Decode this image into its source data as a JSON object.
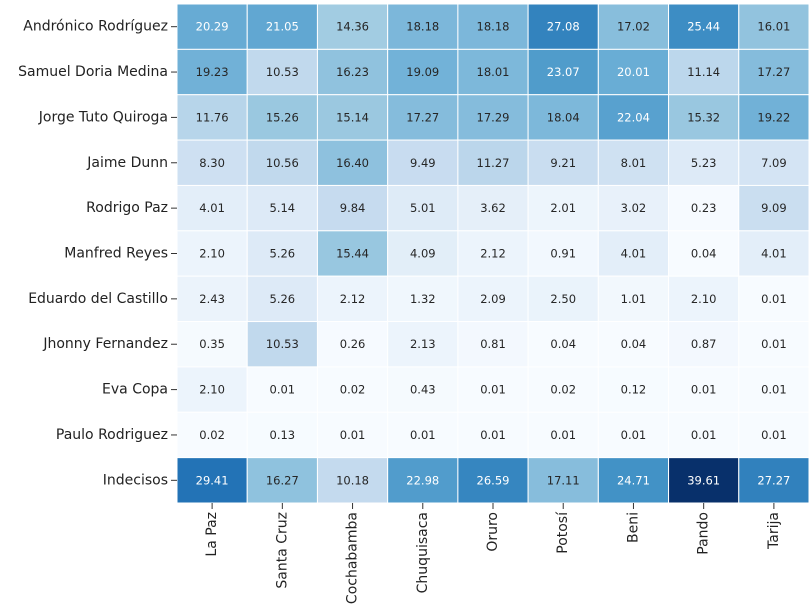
{
  "chart_data": {
    "type": "heatmap",
    "title": "",
    "xlabel": "",
    "ylabel": "",
    "colormap": "Blues",
    "colorscale_range": [
      0,
      39.61
    ],
    "colorbar": false,
    "grid_lines_color": "#ffffff",
    "columns": [
      "La Paz",
      "Santa Cruz",
      "Cochabamba",
      "Chuquisaca",
      "Oruro",
      "Potosí",
      "Beni",
      "Pando",
      "Tarija"
    ],
    "rows": [
      {
        "label": "Andrónico Rodríguez",
        "values": [
          20.29,
          21.05,
          14.36,
          18.18,
          18.18,
          27.08,
          17.02,
          25.44,
          16.01
        ],
        "display": [
          "20.29",
          "21.05",
          "14.36",
          "18.18",
          "18.18",
          "27.08",
          "17.02",
          "25.44",
          "16.01"
        ]
      },
      {
        "label": "Samuel Doria Medina",
        "values": [
          19.23,
          10.53,
          16.23,
          19.09,
          18.01,
          23.07,
          20.01,
          11.14,
          17.27
        ],
        "display": [
          "19.23",
          "10.53",
          "16.23",
          "19.09",
          "18.01",
          "23.07",
          "20.01",
          "11.14",
          "17.27"
        ]
      },
      {
        "label": "Jorge Tuto Quiroga",
        "values": [
          11.76,
          15.26,
          15.14,
          17.27,
          17.29,
          18.04,
          22.04,
          15.32,
          19.22
        ],
        "display": [
          "11.76",
          "15.26",
          "15.14",
          "17.27",
          "17.29",
          "18.04",
          "22.04",
          "15.32",
          "19.22"
        ]
      },
      {
        "label": "Jaime Dunn",
        "values": [
          8.3,
          10.56,
          16.4,
          9.49,
          11.27,
          9.21,
          8.01,
          5.23,
          7.09
        ],
        "display": [
          "8.30",
          "10.56",
          "16.40",
          "9.49",
          "11.27",
          "9.21",
          "8.01",
          "5.23",
          "7.09"
        ]
      },
      {
        "label": "Rodrigo Paz",
        "values": [
          4.01,
          5.14,
          9.84,
          5.01,
          3.62,
          2.01,
          3.02,
          0.23,
          9.09
        ],
        "display": [
          "4.01",
          "5.14",
          "9.84",
          "5.01",
          "3.62",
          "2.01",
          "3.02",
          "0.23",
          "9.09"
        ]
      },
      {
        "label": "Manfred Reyes",
        "values": [
          2.1,
          5.26,
          15.44,
          4.09,
          2.12,
          0.91,
          4.01,
          0.04,
          4.01
        ],
        "display": [
          "2.10",
          "5.26",
          "15.44",
          "4.09",
          "2.12",
          "0.91",
          "4.01",
          "0.04",
          "4.01"
        ]
      },
      {
        "label": "Eduardo del Castillo",
        "values": [
          2.43,
          5.26,
          2.12,
          1.32,
          2.09,
          2.5,
          1.01,
          2.1,
          0.01
        ],
        "display": [
          "2.43",
          "5.26",
          "2.12",
          "1.32",
          "2.09",
          "2.50",
          "1.01",
          "2.10",
          "0.01"
        ]
      },
      {
        "label": "Jhonny Fernandez",
        "values": [
          0.35,
          10.53,
          0.26,
          2.13,
          0.81,
          0.04,
          0.04,
          0.87,
          0.01
        ],
        "display": [
          "0.35",
          "10.53",
          "0.26",
          "2.13",
          "0.81",
          "0.04",
          "0.04",
          "0.87",
          "0.01"
        ]
      },
      {
        "label": "Eva Copa",
        "values": [
          2.1,
          0.01,
          0.02,
          0.43,
          0.01,
          0.02,
          0.12,
          0.01,
          0.01
        ],
        "display": [
          "2.10",
          "0.01",
          "0.02",
          "0.43",
          "0.01",
          "0.02",
          "0.12",
          "0.01",
          "0.01"
        ]
      },
      {
        "label": "Paulo Rodriguez",
        "values": [
          0.02,
          0.13,
          0.01,
          0.01,
          0.01,
          0.01,
          0.01,
          0.01,
          0.01
        ],
        "display": [
          "0.02",
          "0.13",
          "0.01",
          "0.01",
          "0.01",
          "0.01",
          "0.01",
          "0.01",
          "0.01"
        ]
      },
      {
        "label": "Indecisos",
        "values": [
          29.41,
          16.27,
          10.18,
          22.98,
          26.59,
          17.11,
          24.71,
          39.61,
          27.27
        ],
        "display": [
          "29.41",
          "16.27",
          "10.18",
          "22.98",
          "26.59",
          "17.11",
          "24.71",
          "39.61",
          "27.27"
        ]
      }
    ]
  }
}
